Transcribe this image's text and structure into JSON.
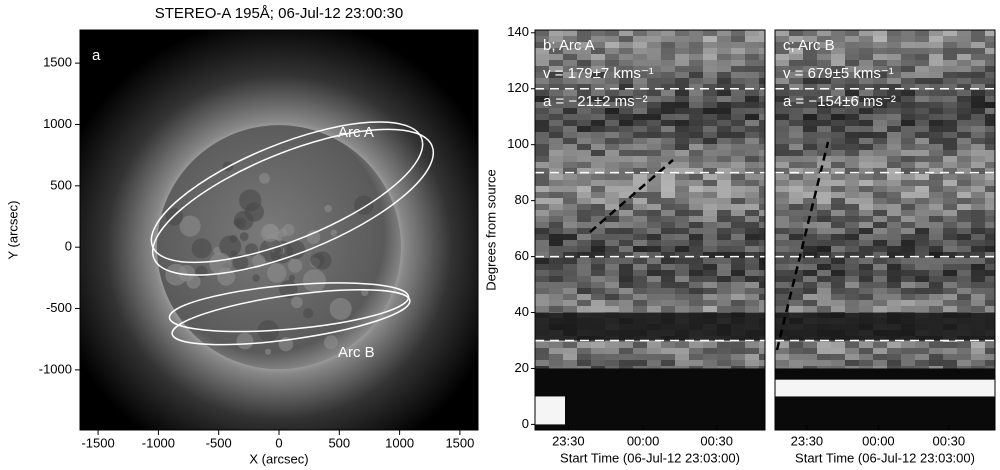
{
  "chart_data": [
    {
      "type": "image",
      "title": "STEREO-A 195Å; 06-Jul-12 23:00:30",
      "panel_label": "a",
      "xlabel": "X (arcsec)",
      "ylabel": "Y (arcsec)",
      "xlim": [
        -1650,
        1650
      ],
      "ylim": [
        -1490,
        1770
      ],
      "xticks": [
        -1500,
        -1000,
        -500,
        0,
        500,
        1000,
        1500
      ],
      "yticks": [
        -1000,
        -500,
        0,
        500,
        1000,
        1500
      ],
      "annotations": [
        "Arc A",
        "Arc B"
      ]
    },
    {
      "type": "time-distance",
      "panel_label": "b; Arc A",
      "annotations": [
        "v = 179±7 kms⁻¹",
        "a = −21±2 ms⁻²"
      ],
      "ylabel": "Degrees from source",
      "xlabel": "Start Time (06-Jul-12 23:03:00)",
      "ylim": [
        -2,
        141
      ],
      "yticks": [
        0,
        20,
        40,
        60,
        80,
        100,
        120,
        140
      ],
      "xticks": [
        "23:30",
        "00:00",
        "00:30"
      ],
      "hlines": [
        30,
        60,
        90,
        120
      ]
    },
    {
      "type": "time-distance",
      "panel_label": "c; Arc B",
      "annotations": [
        "v = 679±5 kms⁻¹",
        "a = −154±6 ms⁻²"
      ],
      "xlabel": "Start Time (06-Jul-12 23:03:00)",
      "ylim": [
        -2,
        141
      ],
      "xticks": [
        "23:30",
        "00:00",
        "00:30"
      ],
      "hlines": [
        30,
        60,
        90,
        120
      ]
    }
  ]
}
